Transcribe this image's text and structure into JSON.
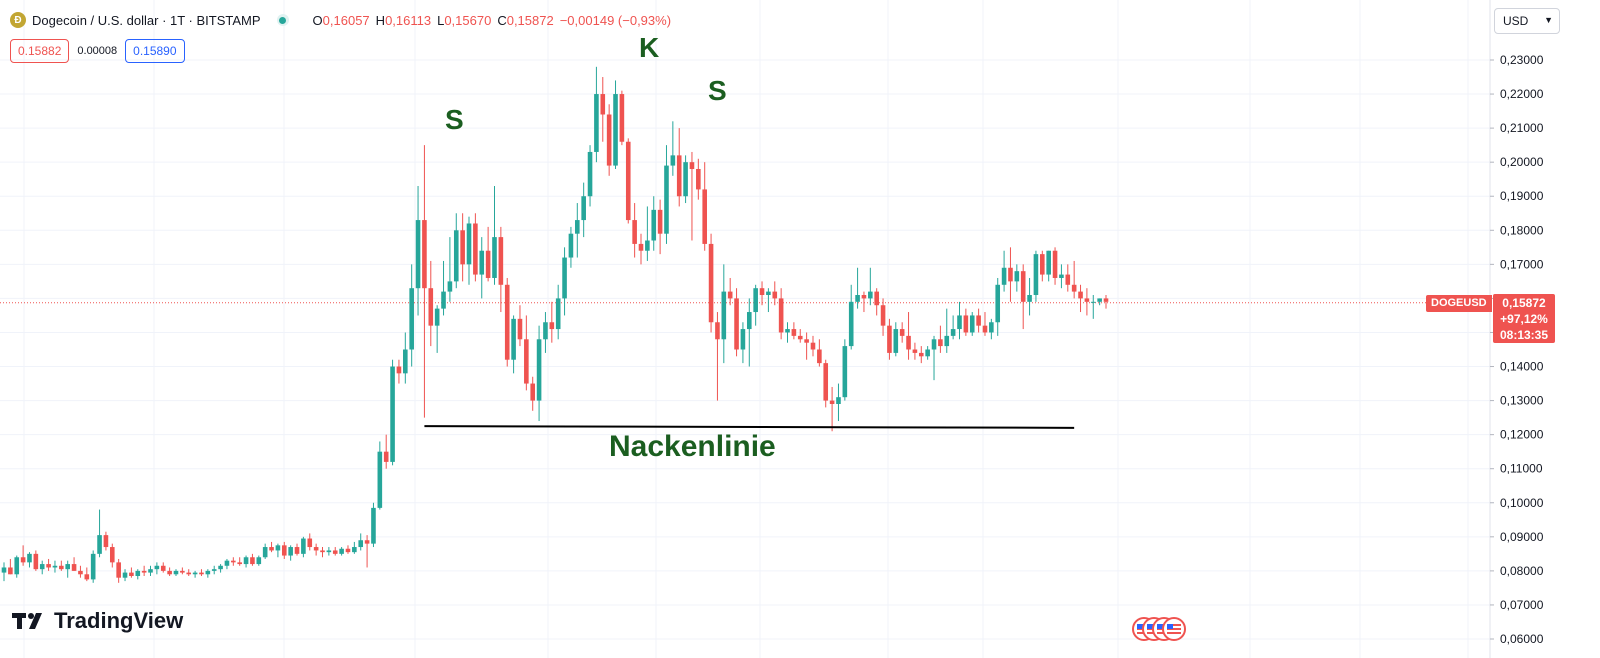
{
  "header": {
    "symbol_title": "Dogecoin / U.S. dollar · 1T · BITSTAMP",
    "coin_glyph": "Ð",
    "ohlc": [
      {
        "key": "O",
        "value": "0,16057"
      },
      {
        "key": "H",
        "value": "0,16113"
      },
      {
        "key": "L",
        "value": "0,15670"
      },
      {
        "key": "C",
        "value": "0,15872"
      },
      {
        "key": "",
        "value": "−0,00149 (−0,93%)"
      }
    ]
  },
  "prices": {
    "sell": "0.15882",
    "spread": "0.00008",
    "buy": "0.15890"
  },
  "currency": {
    "label": "USD"
  },
  "logo": {
    "text": "TradingView"
  },
  "colors": {
    "up": "#26a69a",
    "down": "#ef5350",
    "grid": "#f0f3fa",
    "annotation": "#1b5e20",
    "neckline": "#000000"
  },
  "annotations": {
    "left_shoulder": "S",
    "head": "K",
    "right_shoulder": "S",
    "neckline": "Nackenlinie"
  },
  "current": {
    "symbol": "DOGEUSD",
    "price": "0,15872",
    "change": "+97,12%",
    "countdown": "08:13:35",
    "value": 0.15872
  },
  "chart_data": {
    "type": "candlestick",
    "y_axis": {
      "ylim": [
        0.06,
        0.24
      ],
      "ticks": [
        0.06,
        0.07,
        0.08,
        0.09,
        0.1,
        0.11,
        0.12,
        0.13,
        0.14,
        0.15,
        0.16,
        0.17,
        0.18,
        0.19,
        0.2,
        0.21,
        0.22,
        0.23
      ],
      "tick_labels": [
        "0,06000",
        "0,07000",
        "0,08000",
        "0,09000",
        "0,10000",
        "0,11000",
        "0,12000",
        "0,13000",
        "0,14000",
        "0,15000",
        "0,16000",
        "0,17000",
        "0,18000",
        "0,19000",
        "0,20000",
        "0,21000",
        "0,22000",
        "0,23000"
      ],
      "position": "right"
    },
    "grid": true,
    "neckline": {
      "start": {
        "index": 66,
        "price": 0.1225
      },
      "end": {
        "index": 168,
        "price": 0.122
      }
    },
    "candles": [
      {
        "o": 0.0795,
        "h": 0.0825,
        "l": 0.077,
        "c": 0.081
      },
      {
        "o": 0.081,
        "h": 0.0835,
        "l": 0.079,
        "c": 0.079
      },
      {
        "o": 0.079,
        "h": 0.0845,
        "l": 0.078,
        "c": 0.084
      },
      {
        "o": 0.084,
        "h": 0.0875,
        "l": 0.0815,
        "c": 0.0825
      },
      {
        "o": 0.0825,
        "h": 0.0855,
        "l": 0.081,
        "c": 0.085
      },
      {
        "o": 0.085,
        "h": 0.086,
        "l": 0.08,
        "c": 0.0805
      },
      {
        "o": 0.0805,
        "h": 0.083,
        "l": 0.079,
        "c": 0.082
      },
      {
        "o": 0.082,
        "h": 0.0835,
        "l": 0.08,
        "c": 0.081
      },
      {
        "o": 0.081,
        "h": 0.083,
        "l": 0.0795,
        "c": 0.0815
      },
      {
        "o": 0.0815,
        "h": 0.083,
        "l": 0.08,
        "c": 0.0805
      },
      {
        "o": 0.0805,
        "h": 0.083,
        "l": 0.078,
        "c": 0.082
      },
      {
        "o": 0.082,
        "h": 0.084,
        "l": 0.08,
        "c": 0.08
      },
      {
        "o": 0.08,
        "h": 0.0815,
        "l": 0.078,
        "c": 0.079
      },
      {
        "o": 0.079,
        "h": 0.081,
        "l": 0.077,
        "c": 0.0775
      },
      {
        "o": 0.0775,
        "h": 0.086,
        "l": 0.0765,
        "c": 0.085
      },
      {
        "o": 0.085,
        "h": 0.098,
        "l": 0.084,
        "c": 0.0905
      },
      {
        "o": 0.0905,
        "h": 0.0915,
        "l": 0.086,
        "c": 0.087
      },
      {
        "o": 0.087,
        "h": 0.088,
        "l": 0.081,
        "c": 0.0825
      },
      {
        "o": 0.0825,
        "h": 0.0835,
        "l": 0.0765,
        "c": 0.078
      },
      {
        "o": 0.078,
        "h": 0.0805,
        "l": 0.077,
        "c": 0.0795
      },
      {
        "o": 0.0795,
        "h": 0.081,
        "l": 0.078,
        "c": 0.0785
      },
      {
        "o": 0.0785,
        "h": 0.0805,
        "l": 0.0775,
        "c": 0.08
      },
      {
        "o": 0.08,
        "h": 0.0815,
        "l": 0.0785,
        "c": 0.0795
      },
      {
        "o": 0.0795,
        "h": 0.0815,
        "l": 0.0785,
        "c": 0.0805
      },
      {
        "o": 0.0805,
        "h": 0.0825,
        "l": 0.079,
        "c": 0.0815
      },
      {
        "o": 0.0815,
        "h": 0.0825,
        "l": 0.0795,
        "c": 0.08
      },
      {
        "o": 0.08,
        "h": 0.081,
        "l": 0.0785,
        "c": 0.079
      },
      {
        "o": 0.079,
        "h": 0.0805,
        "l": 0.0785,
        "c": 0.08
      },
      {
        "o": 0.08,
        "h": 0.081,
        "l": 0.079,
        "c": 0.0795
      },
      {
        "o": 0.0795,
        "h": 0.0805,
        "l": 0.0785,
        "c": 0.079
      },
      {
        "o": 0.079,
        "h": 0.08,
        "l": 0.078,
        "c": 0.0795
      },
      {
        "o": 0.0795,
        "h": 0.0805,
        "l": 0.0785,
        "c": 0.079
      },
      {
        "o": 0.079,
        "h": 0.0805,
        "l": 0.078,
        "c": 0.08
      },
      {
        "o": 0.08,
        "h": 0.0815,
        "l": 0.079,
        "c": 0.0805
      },
      {
        "o": 0.0805,
        "h": 0.082,
        "l": 0.0795,
        "c": 0.0815
      },
      {
        "o": 0.0815,
        "h": 0.0835,
        "l": 0.0805,
        "c": 0.083
      },
      {
        "o": 0.083,
        "h": 0.084,
        "l": 0.0815,
        "c": 0.0825
      },
      {
        "o": 0.0825,
        "h": 0.084,
        "l": 0.0815,
        "c": 0.082
      },
      {
        "o": 0.082,
        "h": 0.0845,
        "l": 0.081,
        "c": 0.084
      },
      {
        "o": 0.084,
        "h": 0.085,
        "l": 0.0815,
        "c": 0.082
      },
      {
        "o": 0.082,
        "h": 0.0845,
        "l": 0.0815,
        "c": 0.084
      },
      {
        "o": 0.084,
        "h": 0.088,
        "l": 0.0835,
        "c": 0.087
      },
      {
        "o": 0.087,
        "h": 0.0885,
        "l": 0.0855,
        "c": 0.086
      },
      {
        "o": 0.086,
        "h": 0.088,
        "l": 0.084,
        "c": 0.0875
      },
      {
        "o": 0.0875,
        "h": 0.0885,
        "l": 0.0835,
        "c": 0.0845
      },
      {
        "o": 0.0845,
        "h": 0.0875,
        "l": 0.083,
        "c": 0.087
      },
      {
        "o": 0.087,
        "h": 0.088,
        "l": 0.0845,
        "c": 0.085
      },
      {
        "o": 0.085,
        "h": 0.09,
        "l": 0.084,
        "c": 0.0895
      },
      {
        "o": 0.0895,
        "h": 0.091,
        "l": 0.086,
        "c": 0.087
      },
      {
        "o": 0.087,
        "h": 0.088,
        "l": 0.0845,
        "c": 0.086
      },
      {
        "o": 0.086,
        "h": 0.087,
        "l": 0.084,
        "c": 0.0855
      },
      {
        "o": 0.0855,
        "h": 0.087,
        "l": 0.0845,
        "c": 0.086
      },
      {
        "o": 0.086,
        "h": 0.087,
        "l": 0.0845,
        "c": 0.085
      },
      {
        "o": 0.085,
        "h": 0.087,
        "l": 0.0845,
        "c": 0.0865
      },
      {
        "o": 0.0865,
        "h": 0.0875,
        "l": 0.085,
        "c": 0.0855
      },
      {
        "o": 0.0855,
        "h": 0.0885,
        "l": 0.085,
        "c": 0.087
      },
      {
        "o": 0.087,
        "h": 0.091,
        "l": 0.086,
        "c": 0.089
      },
      {
        "o": 0.089,
        "h": 0.0905,
        "l": 0.081,
        "c": 0.088
      },
      {
        "o": 0.088,
        "h": 0.1,
        "l": 0.087,
        "c": 0.0985
      },
      {
        "o": 0.0985,
        "h": 0.118,
        "l": 0.098,
        "c": 0.115
      },
      {
        "o": 0.115,
        "h": 0.12,
        "l": 0.11,
        "c": 0.112
      },
      {
        "o": 0.112,
        "h": 0.142,
        "l": 0.111,
        "c": 0.14
      },
      {
        "o": 0.14,
        "h": 0.142,
        "l": 0.135,
        "c": 0.138
      },
      {
        "o": 0.138,
        "h": 0.15,
        "l": 0.135,
        "c": 0.145
      },
      {
        "o": 0.145,
        "h": 0.17,
        "l": 0.14,
        "c": 0.163
      },
      {
        "o": 0.163,
        "h": 0.193,
        "l": 0.155,
        "c": 0.183
      },
      {
        "o": 0.183,
        "h": 0.205,
        "l": 0.125,
        "c": 0.163
      },
      {
        "o": 0.163,
        "h": 0.171,
        "l": 0.146,
        "c": 0.152
      },
      {
        "o": 0.152,
        "h": 0.158,
        "l": 0.144,
        "c": 0.157
      },
      {
        "o": 0.157,
        "h": 0.171,
        "l": 0.155,
        "c": 0.162
      },
      {
        "o": 0.162,
        "h": 0.178,
        "l": 0.159,
        "c": 0.165
      },
      {
        "o": 0.165,
        "h": 0.185,
        "l": 0.163,
        "c": 0.18
      },
      {
        "o": 0.18,
        "h": 0.185,
        "l": 0.165,
        "c": 0.17
      },
      {
        "o": 0.17,
        "h": 0.184,
        "l": 0.164,
        "c": 0.182
      },
      {
        "o": 0.182,
        "h": 0.185,
        "l": 0.165,
        "c": 0.167
      },
      {
        "o": 0.167,
        "h": 0.178,
        "l": 0.16,
        "c": 0.174
      },
      {
        "o": 0.174,
        "h": 0.181,
        "l": 0.165,
        "c": 0.166
      },
      {
        "o": 0.166,
        "h": 0.193,
        "l": 0.164,
        "c": 0.178
      },
      {
        "o": 0.178,
        "h": 0.181,
        "l": 0.156,
        "c": 0.164
      },
      {
        "o": 0.164,
        "h": 0.166,
        "l": 0.14,
        "c": 0.142
      },
      {
        "o": 0.142,
        "h": 0.155,
        "l": 0.138,
        "c": 0.154
      },
      {
        "o": 0.154,
        "h": 0.158,
        "l": 0.146,
        "c": 0.148
      },
      {
        "o": 0.148,
        "h": 0.155,
        "l": 0.133,
        "c": 0.135
      },
      {
        "o": 0.135,
        "h": 0.137,
        "l": 0.127,
        "c": 0.13
      },
      {
        "o": 0.13,
        "h": 0.152,
        "l": 0.124,
        "c": 0.148
      },
      {
        "o": 0.148,
        "h": 0.156,
        "l": 0.144,
        "c": 0.153
      },
      {
        "o": 0.153,
        "h": 0.159,
        "l": 0.147,
        "c": 0.151
      },
      {
        "o": 0.151,
        "h": 0.164,
        "l": 0.148,
        "c": 0.16
      },
      {
        "o": 0.16,
        "h": 0.175,
        "l": 0.155,
        "c": 0.172
      },
      {
        "o": 0.172,
        "h": 0.181,
        "l": 0.169,
        "c": 0.179
      },
      {
        "o": 0.179,
        "h": 0.188,
        "l": 0.172,
        "c": 0.183
      },
      {
        "o": 0.183,
        "h": 0.194,
        "l": 0.178,
        "c": 0.19
      },
      {
        "o": 0.19,
        "h": 0.205,
        "l": 0.187,
        "c": 0.203
      },
      {
        "o": 0.203,
        "h": 0.228,
        "l": 0.2,
        "c": 0.22
      },
      {
        "o": 0.22,
        "h": 0.225,
        "l": 0.206,
        "c": 0.214
      },
      {
        "o": 0.214,
        "h": 0.217,
        "l": 0.196,
        "c": 0.199
      },
      {
        "o": 0.199,
        "h": 0.224,
        "l": 0.198,
        "c": 0.22
      },
      {
        "o": 0.22,
        "h": 0.221,
        "l": 0.205,
        "c": 0.206
      },
      {
        "o": 0.206,
        "h": 0.207,
        "l": 0.182,
        "c": 0.183
      },
      {
        "o": 0.183,
        "h": 0.188,
        "l": 0.172,
        "c": 0.176
      },
      {
        "o": 0.176,
        "h": 0.179,
        "l": 0.17,
        "c": 0.174
      },
      {
        "o": 0.174,
        "h": 0.187,
        "l": 0.171,
        "c": 0.177
      },
      {
        "o": 0.177,
        "h": 0.19,
        "l": 0.174,
        "c": 0.186
      },
      {
        "o": 0.186,
        "h": 0.189,
        "l": 0.173,
        "c": 0.179
      },
      {
        "o": 0.179,
        "h": 0.205,
        "l": 0.176,
        "c": 0.199
      },
      {
        "o": 0.199,
        "h": 0.212,
        "l": 0.196,
        "c": 0.202
      },
      {
        "o": 0.202,
        "h": 0.21,
        "l": 0.187,
        "c": 0.19
      },
      {
        "o": 0.19,
        "h": 0.202,
        "l": 0.188,
        "c": 0.2
      },
      {
        "o": 0.2,
        "h": 0.203,
        "l": 0.177,
        "c": 0.198
      },
      {
        "o": 0.198,
        "h": 0.201,
        "l": 0.189,
        "c": 0.192
      },
      {
        "o": 0.192,
        "h": 0.2,
        "l": 0.174,
        "c": 0.176
      },
      {
        "o": 0.176,
        "h": 0.179,
        "l": 0.15,
        "c": 0.153
      },
      {
        "o": 0.153,
        "h": 0.156,
        "l": 0.13,
        "c": 0.148
      },
      {
        "o": 0.148,
        "h": 0.17,
        "l": 0.141,
        "c": 0.162
      },
      {
        "o": 0.162,
        "h": 0.166,
        "l": 0.158,
        "c": 0.16
      },
      {
        "o": 0.16,
        "h": 0.163,
        "l": 0.143,
        "c": 0.145
      },
      {
        "o": 0.145,
        "h": 0.153,
        "l": 0.141,
        "c": 0.151
      },
      {
        "o": 0.151,
        "h": 0.16,
        "l": 0.14,
        "c": 0.156
      },
      {
        "o": 0.156,
        "h": 0.164,
        "l": 0.152,
        "c": 0.163
      },
      {
        "o": 0.163,
        "h": 0.165,
        "l": 0.158,
        "c": 0.161
      },
      {
        "o": 0.161,
        "h": 0.163,
        "l": 0.156,
        "c": 0.162
      },
      {
        "o": 0.162,
        "h": 0.165,
        "l": 0.158,
        "c": 0.16
      },
      {
        "o": 0.16,
        "h": 0.163,
        "l": 0.148,
        "c": 0.15
      },
      {
        "o": 0.15,
        "h": 0.153,
        "l": 0.147,
        "c": 0.151
      },
      {
        "o": 0.151,
        "h": 0.153,
        "l": 0.148,
        "c": 0.149
      },
      {
        "o": 0.149,
        "h": 0.151,
        "l": 0.147,
        "c": 0.148
      },
      {
        "o": 0.148,
        "h": 0.15,
        "l": 0.142,
        "c": 0.147
      },
      {
        "o": 0.147,
        "h": 0.149,
        "l": 0.143,
        "c": 0.145
      },
      {
        "o": 0.145,
        "h": 0.148,
        "l": 0.14,
        "c": 0.141
      },
      {
        "o": 0.141,
        "h": 0.142,
        "l": 0.128,
        "c": 0.13
      },
      {
        "o": 0.13,
        "h": 0.134,
        "l": 0.121,
        "c": 0.129
      },
      {
        "o": 0.129,
        "h": 0.135,
        "l": 0.124,
        "c": 0.131
      },
      {
        "o": 0.131,
        "h": 0.148,
        "l": 0.13,
        "c": 0.146
      },
      {
        "o": 0.146,
        "h": 0.164,
        "l": 0.145,
        "c": 0.159
      },
      {
        "o": 0.159,
        "h": 0.169,
        "l": 0.157,
        "c": 0.161
      },
      {
        "o": 0.161,
        "h": 0.162,
        "l": 0.156,
        "c": 0.16
      },
      {
        "o": 0.16,
        "h": 0.169,
        "l": 0.158,
        "c": 0.162
      },
      {
        "o": 0.162,
        "h": 0.163,
        "l": 0.155,
        "c": 0.158
      },
      {
        "o": 0.158,
        "h": 0.16,
        "l": 0.149,
        "c": 0.152
      },
      {
        "o": 0.152,
        "h": 0.154,
        "l": 0.142,
        "c": 0.144
      },
      {
        "o": 0.144,
        "h": 0.153,
        "l": 0.143,
        "c": 0.151
      },
      {
        "o": 0.151,
        "h": 0.153,
        "l": 0.147,
        "c": 0.149
      },
      {
        "o": 0.149,
        "h": 0.156,
        "l": 0.142,
        "c": 0.145
      },
      {
        "o": 0.145,
        "h": 0.147,
        "l": 0.142,
        "c": 0.144
      },
      {
        "o": 0.144,
        "h": 0.146,
        "l": 0.141,
        "c": 0.143
      },
      {
        "o": 0.143,
        "h": 0.146,
        "l": 0.142,
        "c": 0.145
      },
      {
        "o": 0.145,
        "h": 0.149,
        "l": 0.136,
        "c": 0.148
      },
      {
        "o": 0.148,
        "h": 0.152,
        "l": 0.144,
        "c": 0.146
      },
      {
        "o": 0.146,
        "h": 0.157,
        "l": 0.144,
        "c": 0.149
      },
      {
        "o": 0.149,
        "h": 0.155,
        "l": 0.148,
        "c": 0.151
      },
      {
        "o": 0.151,
        "h": 0.159,
        "l": 0.148,
        "c": 0.155
      },
      {
        "o": 0.155,
        "h": 0.157,
        "l": 0.149,
        "c": 0.15
      },
      {
        "o": 0.15,
        "h": 0.156,
        "l": 0.149,
        "c": 0.155
      },
      {
        "o": 0.155,
        "h": 0.157,
        "l": 0.15,
        "c": 0.152
      },
      {
        "o": 0.152,
        "h": 0.156,
        "l": 0.149,
        "c": 0.15
      },
      {
        "o": 0.15,
        "h": 0.154,
        "l": 0.148,
        "c": 0.153
      },
      {
        "o": 0.153,
        "h": 0.166,
        "l": 0.149,
        "c": 0.164
      },
      {
        "o": 0.164,
        "h": 0.174,
        "l": 0.162,
        "c": 0.169
      },
      {
        "o": 0.169,
        "h": 0.175,
        "l": 0.159,
        "c": 0.165
      },
      {
        "o": 0.165,
        "h": 0.17,
        "l": 0.162,
        "c": 0.168
      },
      {
        "o": 0.168,
        "h": 0.17,
        "l": 0.151,
        "c": 0.159
      },
      {
        "o": 0.159,
        "h": 0.166,
        "l": 0.155,
        "c": 0.161
      },
      {
        "o": 0.161,
        "h": 0.174,
        "l": 0.159,
        "c": 0.173
      },
      {
        "o": 0.173,
        "h": 0.174,
        "l": 0.165,
        "c": 0.167
      },
      {
        "o": 0.167,
        "h": 0.174,
        "l": 0.165,
        "c": 0.174
      },
      {
        "o": 0.174,
        "h": 0.175,
        "l": 0.164,
        "c": 0.166
      },
      {
        "o": 0.166,
        "h": 0.17,
        "l": 0.163,
        "c": 0.167
      },
      {
        "o": 0.167,
        "h": 0.17,
        "l": 0.162,
        "c": 0.164
      },
      {
        "o": 0.164,
        "h": 0.171,
        "l": 0.16,
        "c": 0.162
      },
      {
        "o": 0.162,
        "h": 0.164,
        "l": 0.156,
        "c": 0.16
      },
      {
        "o": 0.16,
        "h": 0.163,
        "l": 0.155,
        "c": 0.159
      },
      {
        "o": 0.159,
        "h": 0.161,
        "l": 0.154,
        "c": 0.159
      },
      {
        "o": 0.159,
        "h": 0.16,
        "l": 0.158,
        "c": 0.16
      },
      {
        "o": 0.16,
        "h": 0.161,
        "l": 0.157,
        "c": 0.159
      }
    ]
  }
}
